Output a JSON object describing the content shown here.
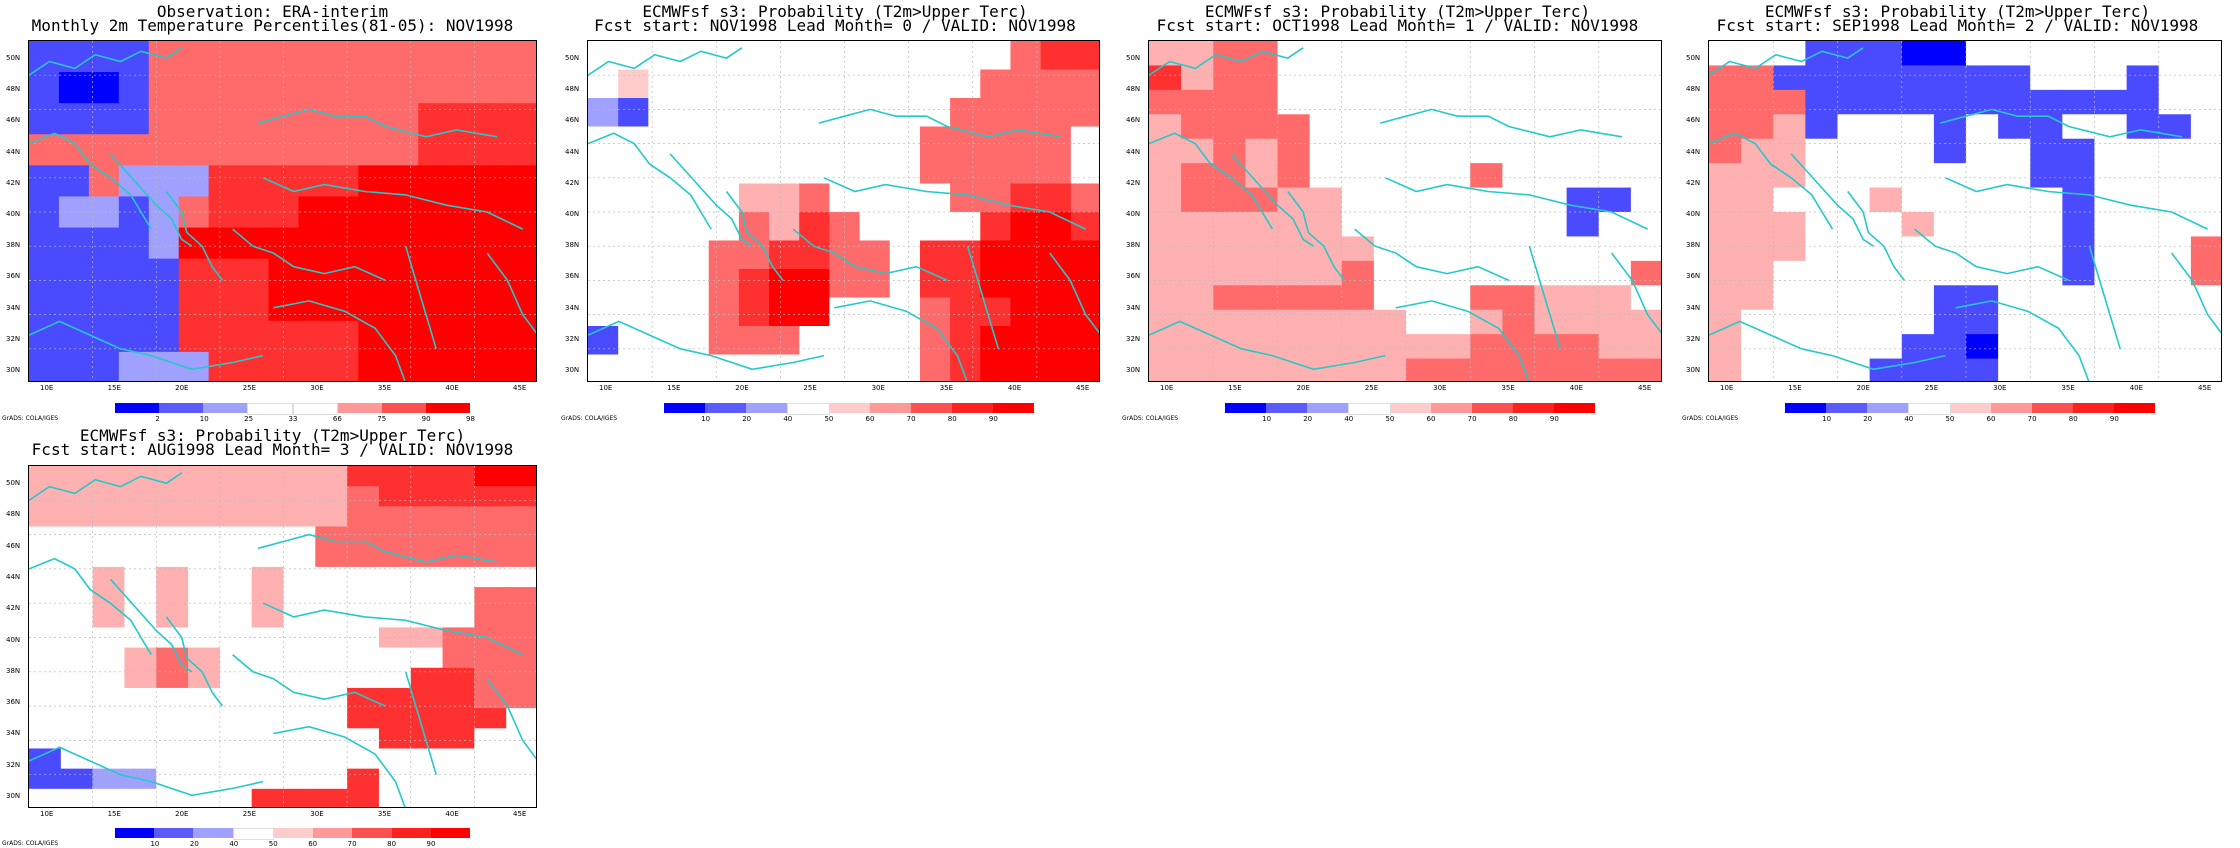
{
  "chart_data": [
    {
      "type": "heatmap",
      "title": [
        "Observation: ERA-interim",
        "Monthly 2m Temperature Percentiles(81-05): NOV1998"
      ],
      "lat_labels": [
        "50N",
        "48N",
        "46N",
        "44N",
        "42N",
        "40N",
        "38N",
        "36N",
        "34N",
        "32N",
        "30N"
      ],
      "lon_labels": [
        "10E",
        "15E",
        "20E",
        "25E",
        "30E",
        "35E",
        "40E",
        "45E"
      ],
      "colorbar_ticks": [
        "2",
        "10",
        "25",
        "33",
        "66",
        "75",
        "90",
        "98"
      ],
      "colorbar_colors": [
        "#0000ff",
        "#5a5aff",
        "#a0a0ff",
        "#ffffff",
        "#ffffff",
        "#ff9999",
        "#ff5050",
        "#ff0000"
      ],
      "credit": "GrADS: COLA/IGES",
      "grid": [
        "11116666666666666",
        "10016666666666666",
        "11116666666667777",
        "66666666666667777",
        "11622277777888888",
        "12212677788888888",
        "11112888888888888",
        "11111777888888888",
        "11111777888888888",
        "11111777777888888",
        "11122277777888888"
      ]
    },
    {
      "type": "heatmap",
      "title": [
        "ECMWFsf s3: Probability (T2m>Upper Terc)",
        "Fcst start: NOV1998   Lead Month= 0 / VALID: NOV1998"
      ],
      "lat_labels": [
        "50N",
        "48N",
        "46N",
        "44N",
        "42N",
        "40N",
        "38N",
        "36N",
        "34N",
        "32N",
        "30N"
      ],
      "lon_labels": [
        "10E",
        "15E",
        "20E",
        "25E",
        "30E",
        "35E",
        "40E",
        "45E"
      ],
      "colorbar_ticks": [
        "10",
        "20",
        "40",
        "50",
        "60",
        "70",
        "80",
        "90"
      ],
      "colorbar_colors": [
        "#0000ff",
        "#5a5aff",
        "#a0a0ff",
        "#ffffff",
        "#ffcccc",
        "#ff9999",
        "#ff5050",
        "#ff2020",
        "#ff0000"
      ],
      "credit": "GrADS: COLA/IGES",
      "grid": [
        "33333333333333677",
        "34333333333336666",
        "21333333333366666",
        "33333333333666663",
        "33333333333666663",
        "33333556333366776",
        "33333657633337887",
        "33336677663778888",
        "33336788663778888",
        "33336788333677888",
        "13336663333678888",
        "33333333333678888"
      ]
    },
    {
      "type": "heatmap",
      "title": [
        "ECMWFsf s3: Probability (T2m>Upper Terc)",
        "Fcst start: OCT1998   Lead Month= 1 / VALID: NOV1998"
      ],
      "lat_labels": [
        "50N",
        "48N",
        "46N",
        "44N",
        "42N",
        "40N",
        "38N",
        "36N",
        "34N",
        "32N",
        "30N"
      ],
      "lon_labels": [
        "10E",
        "15E",
        "20E",
        "25E",
        "30E",
        "35E",
        "40E",
        "45E"
      ],
      "colorbar_ticks": [
        "10",
        "20",
        "40",
        "50",
        "60",
        "70",
        "80",
        "90"
      ],
      "colorbar_colors": [
        "#0000ff",
        "#5a5aff",
        "#a0a0ff",
        "#ffffff",
        "#ffcccc",
        "#ff9999",
        "#ff5050",
        "#ff2020",
        "#ff0000"
      ],
      "credit": "GrADS: COLA/IGES",
      "grid": [
        "5566333333333333",
        "7566333333333333",
        "6666333333333333",
        "5666633333333333",
        "5565633333333333",
        "5665633333633333",
        "5666553333333113",
        "5555553333333133",
        "5555555333333333",
        "5555556333333336",
        "5566666333665553",
        "5555555533565555",
        "5555555555666655",
        "5555555566666666"
      ]
    },
    {
      "type": "heatmap",
      "title": [
        "ECMWFsf s3: Probability (T2m>Upper Terc)",
        "Fcst start: SEP1998   Lead Month= 2 / VALID: NOV1998"
      ],
      "lat_labels": [
        "50N",
        "48N",
        "46N",
        "44N",
        "42N",
        "40N",
        "38N",
        "36N",
        "34N",
        "32N",
        "30N"
      ],
      "lon_labels": [
        "10E",
        "15E",
        "20E",
        "25E",
        "30E",
        "35E",
        "40E",
        "45E"
      ],
      "colorbar_ticks": [
        "10",
        "20",
        "40",
        "50",
        "60",
        "70",
        "80",
        "90"
      ],
      "colorbar_colors": [
        "#0000ff",
        "#5a5aff",
        "#a0a0ff",
        "#ffffff",
        "#ffcccc",
        "#ff9999",
        "#ff5050",
        "#ff2020",
        "#ff0000"
      ],
      "credit": "GrADS: COLA/IGES",
      "grid": [
        "3331110033333333",
        "6611111111333133",
        "6661111111111133",
        "6651333131133113",
        "6553333133113333",
        "5553333333113333",
        "5533353333313333",
        "5553335333313333",
        "5553333333313336",
        "5533333333313336",
        "5533333113333333",
        "5333333113333333",
        "5333331103333333",
        "5333311113333333"
      ]
    },
    {
      "type": "heatmap",
      "title": [
        "ECMWFsf s3: Probability (T2m>Upper Terc)",
        "Fcst start: AUG1998   Lead Month= 3 / VALID: NOV1998"
      ],
      "lat_labels": [
        "50N",
        "48N",
        "46N",
        "44N",
        "42N",
        "40N",
        "38N",
        "36N",
        "34N",
        "32N",
        "30N"
      ],
      "lon_labels": [
        "10E",
        "15E",
        "20E",
        "25E",
        "30E",
        "35E",
        "40E",
        "45E"
      ],
      "colorbar_ticks": [
        "10",
        "20",
        "40",
        "50",
        "60",
        "70",
        "80",
        "90"
      ],
      "colorbar_colors": [
        "#0000ff",
        "#5a5aff",
        "#a0a0ff",
        "#ffffff",
        "#ffcccc",
        "#ff9999",
        "#ff5050",
        "#ff2020",
        "#ff0000"
      ],
      "credit": "GrADS: COLA/IGES",
      "grid": [
        "5555555555777788",
        "5555555555677777",
        "5555555555666666",
        "3333333336666666",
        "3333333336666666",
        "3353533533333333",
        "3353533533333366",
        "3353533533333366",
        "3333333333355666",
        "3335653333333666",
        "3335653333337766",
        "3333333333777766",
        "3333333333777773",
        "3333333333377733",
        "1333333333333333",
        "1122333333733333",
        "3333333777733333"
      ]
    }
  ],
  "styles": {
    "coast_color": "#25c9c9",
    "grid_line_color": "#bbbbbb",
    "shade_colors": {
      "0": "#0000ff",
      "1": "#4a4aff",
      "2": "#a0a0ff",
      "3": "#ffffff",
      "4": "#ffcccc",
      "5": "#ffb0b0",
      "6": "#ff6a6a",
      "7": "#ff3030",
      "8": "#ff0000"
    }
  }
}
